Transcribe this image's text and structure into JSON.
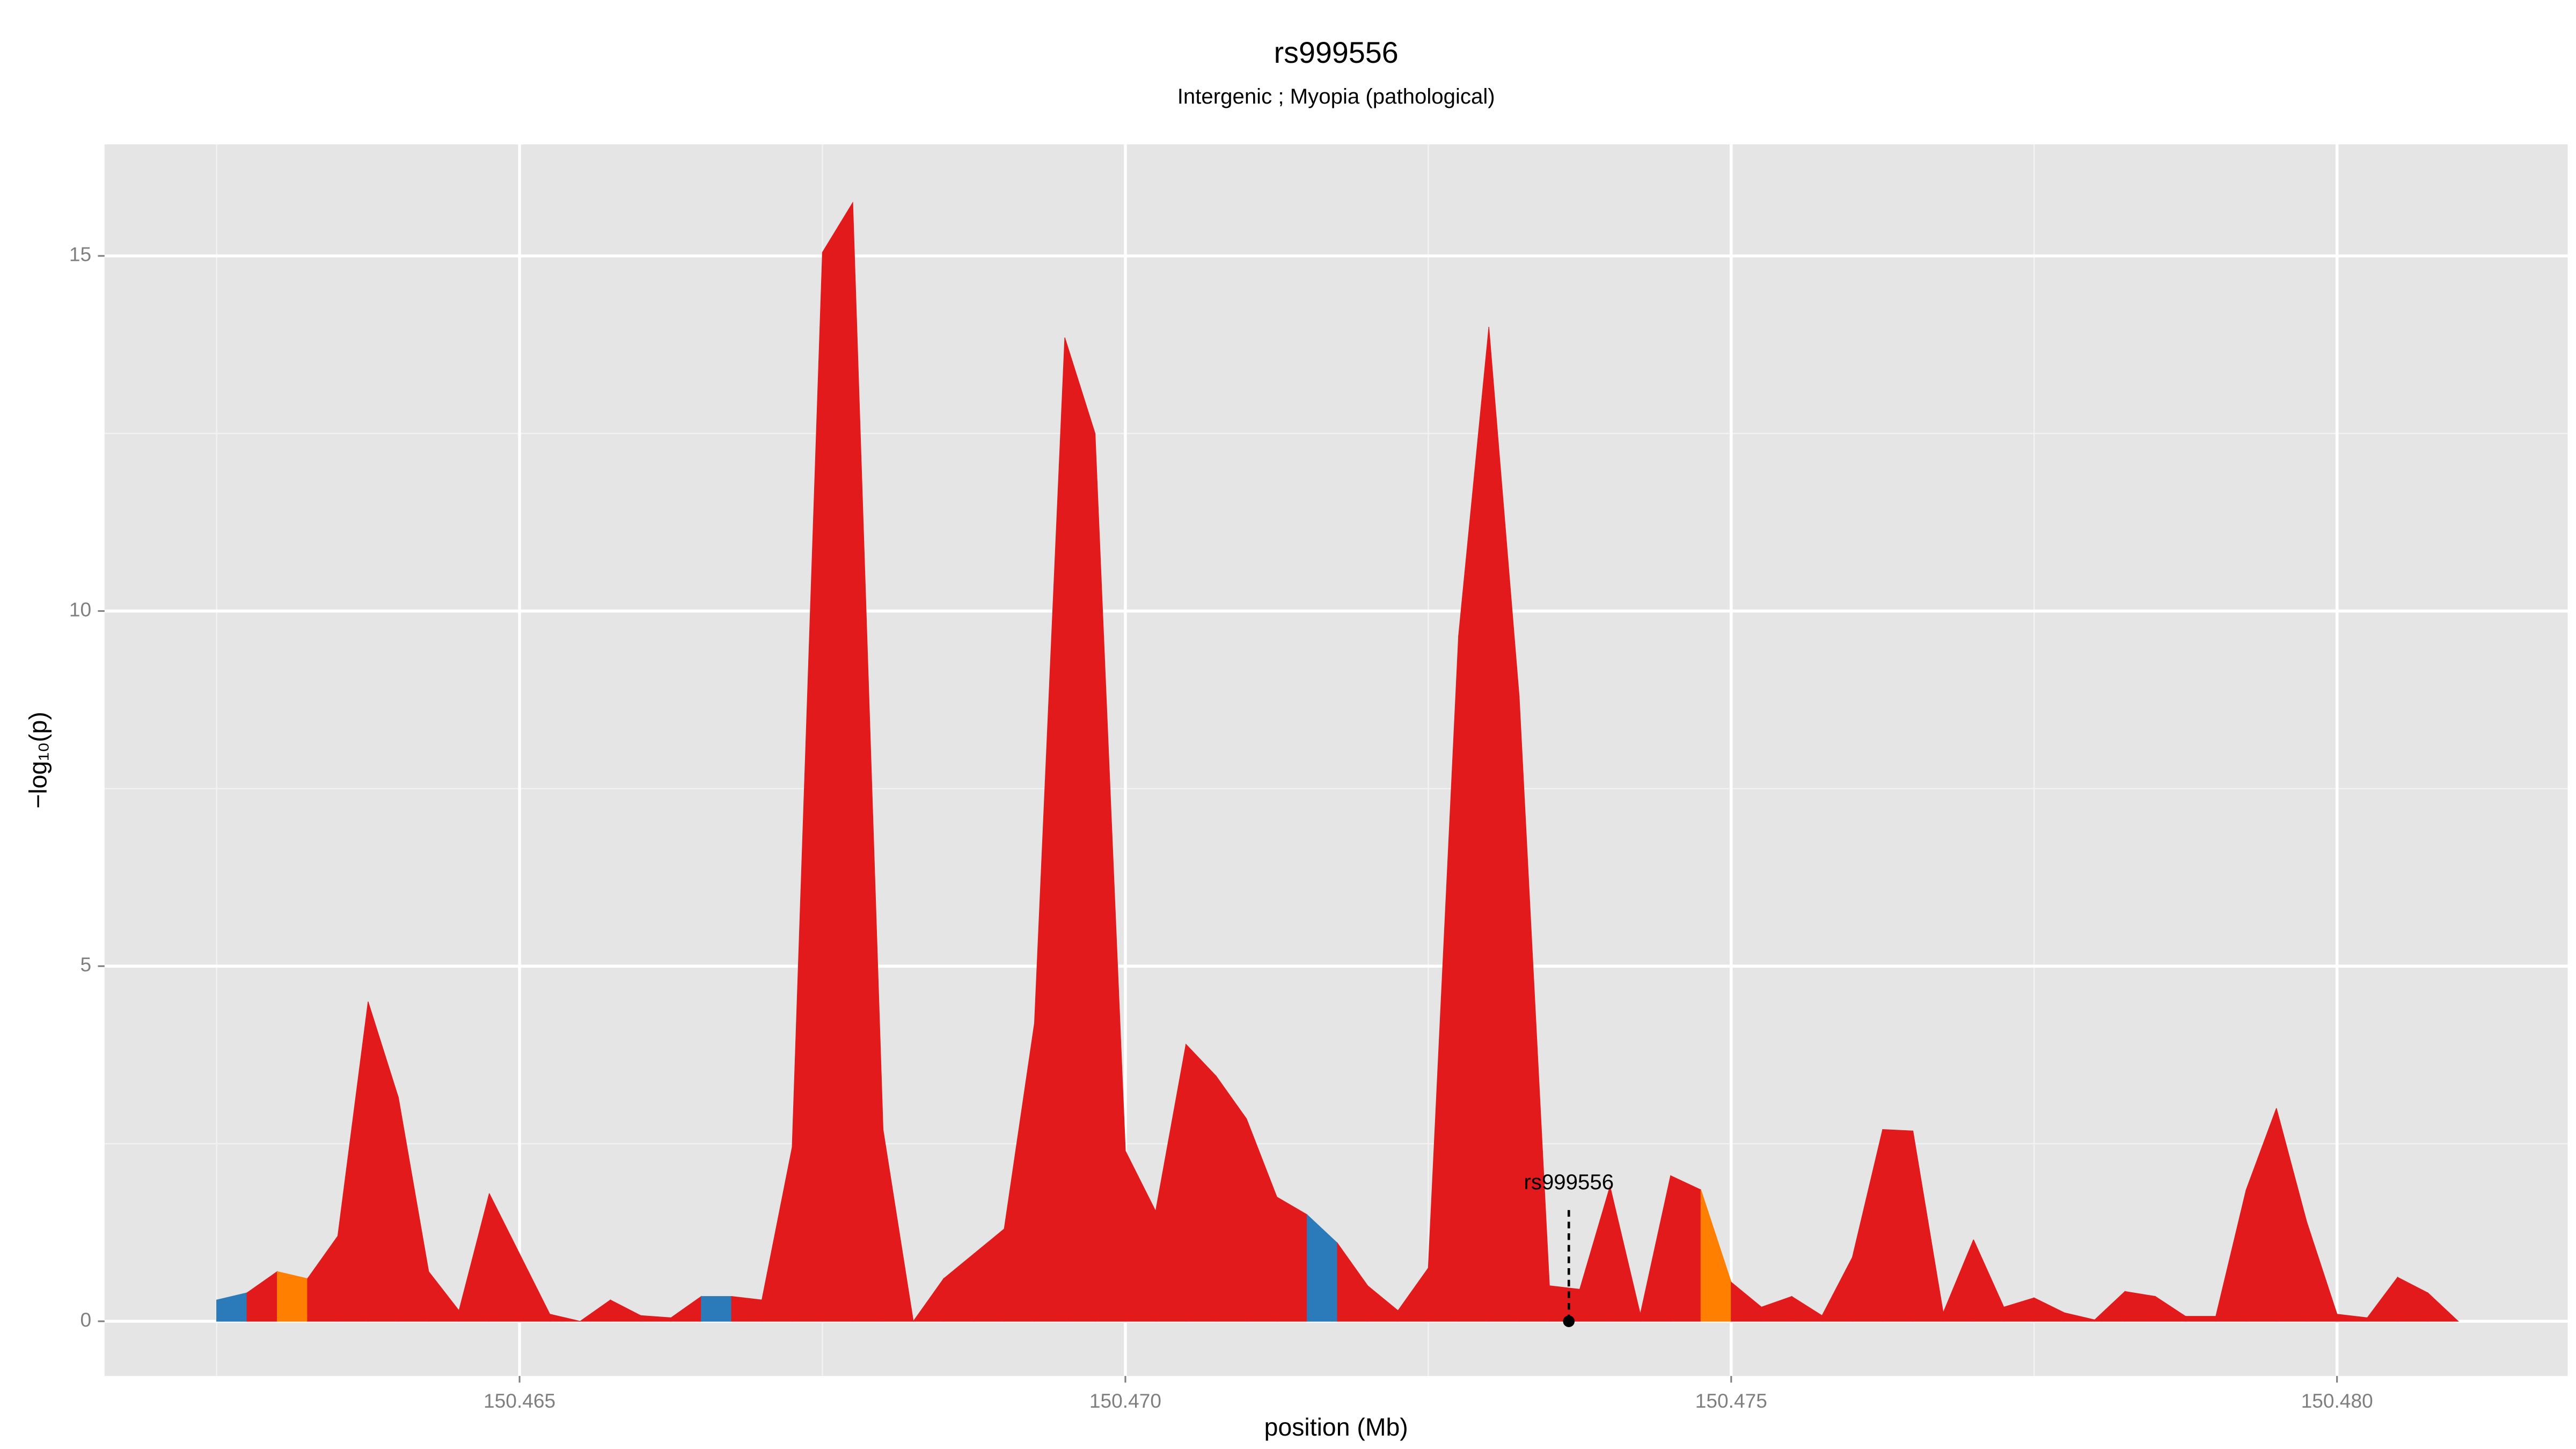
{
  "chart_data": {
    "type": "area",
    "title": "rs999556",
    "subtitle": "Intergenic ; Myopia (pathological)",
    "x_label": "position (Mb)",
    "y_label": "−log₁₀(p)",
    "x": [
      150.4625,
      150.46275,
      150.463,
      150.46325,
      150.4635,
      150.46375,
      150.464,
      150.46425,
      150.4645,
      150.46475,
      150.465,
      150.46525,
      150.4655,
      150.46575,
      150.466,
      150.46625,
      150.4665,
      150.46675,
      150.467,
      150.46725,
      150.4675,
      150.46775,
      150.468,
      150.46825,
      150.4685,
      150.46875,
      150.469,
      150.46925,
      150.4695,
      150.46975,
      150.47,
      150.47025,
      150.4705,
      150.47075,
      150.471,
      150.47125,
      150.4715,
      150.47175,
      150.472,
      150.47225,
      150.4725,
      150.47275,
      150.473,
      150.47325,
      150.4735,
      150.47375,
      150.474,
      150.47425,
      150.4745,
      150.47475,
      150.475,
      150.47525,
      150.4755,
      150.47575,
      150.476,
      150.47625,
      150.4765,
      150.47675,
      150.477,
      150.47725,
      150.4775,
      150.47775,
      150.478,
      150.47825,
      150.4785,
      150.47875,
      150.479,
      150.47925,
      150.4795,
      150.47975,
      150.48,
      150.48025,
      150.4805,
      150.48075,
      150.481
    ],
    "values": [
      0.3,
      0.4,
      0.7,
      0.6,
      1.2,
      4.5,
      3.15,
      0.7,
      0.15,
      1.8,
      0.95,
      0.1,
      0.0,
      0.3,
      0.08,
      0.05,
      0.35,
      0.35,
      0.3,
      2.45,
      15.05,
      15.75,
      2.7,
      0.0,
      0.6,
      0.95,
      1.3,
      4.2,
      13.85,
      12.5,
      2.4,
      1.55,
      3.9,
      3.45,
      2.85,
      1.75,
      1.5,
      1.1,
      0.5,
      0.15,
      0.75,
      9.65,
      14.0,
      8.8,
      0.5,
      0.45,
      1.9,
      0.1,
      2.05,
      1.85,
      0.55,
      0.2,
      0.35,
      0.08,
      0.9,
      2.7,
      2.68,
      0.12,
      1.15,
      0.2,
      0.33,
      0.12,
      0.02,
      0.42,
      0.35,
      0.07,
      0.07,
      1.85,
      3.0,
      1.4,
      0.1,
      0.05,
      0.62,
      0.4,
      0.0
    ],
    "segment_colors": [
      "#2b7bba",
      "#e31a1c",
      "#ff7f00",
      "#e31a1c",
      "#e31a1c",
      "#e31a1c",
      "#e31a1c",
      "#e31a1c",
      "#e31a1c",
      "#e31a1c",
      "#e31a1c",
      "#e31a1c",
      "#e31a1c",
      "#e31a1c",
      "#e31a1c",
      "#e31a1c",
      "#2b7bba",
      "#e31a1c",
      "#e31a1c",
      "#e31a1c",
      "#e31a1c",
      "#e31a1c",
      "#e31a1c",
      "#e31a1c",
      "#e31a1c",
      "#e31a1c",
      "#e31a1c",
      "#e31a1c",
      "#e31a1c",
      "#e31a1c",
      "#e31a1c",
      "#e31a1c",
      "#e31a1c",
      "#e31a1c",
      "#e31a1c",
      "#e31a1c",
      "#2b7bba",
      "#e31a1c",
      "#e31a1c",
      "#e31a1c",
      "#e31a1c",
      "#e31a1c",
      "#e31a1c",
      "#e31a1c",
      "#e31a1c",
      "#e31a1c",
      "#e31a1c",
      "#e31a1c",
      "#e31a1c",
      "#ff7f00",
      "#e31a1c",
      "#e31a1c",
      "#e31a1c",
      "#e31a1c",
      "#e31a1c",
      "#e31a1c",
      "#e31a1c",
      "#e31a1c",
      "#e31a1c",
      "#e31a1c",
      "#e31a1c",
      "#e31a1c",
      "#e31a1c",
      "#e31a1c",
      "#e31a1c",
      "#e31a1c",
      "#e31a1c",
      "#e31a1c",
      "#e31a1c",
      "#e31a1c",
      "#e31a1c",
      "#e31a1c",
      "#e31a1c",
      "#e31a1c"
    ],
    "annotation": {
      "text": "rs999556",
      "x": 150.47366,
      "y": 0
    },
    "xlim": [
      150.461575,
      150.481904
    ],
    "ylim": [
      -0.77,
      16.57
    ],
    "xticks": [
      150.465,
      {
        "value": 150.47,
        "label": "150.470"
      },
      150.475,
      {
        "value": 150.48,
        "label": "150.480"
      }
    ],
    "yticks": [
      0,
      5,
      10,
      15
    ],
    "minor_xticks": [
      150.4625,
      150.4675,
      150.4725,
      150.4775
    ],
    "minor_yticks": [
      2.5,
      7.5,
      12.5
    ],
    "grid": true
  }
}
